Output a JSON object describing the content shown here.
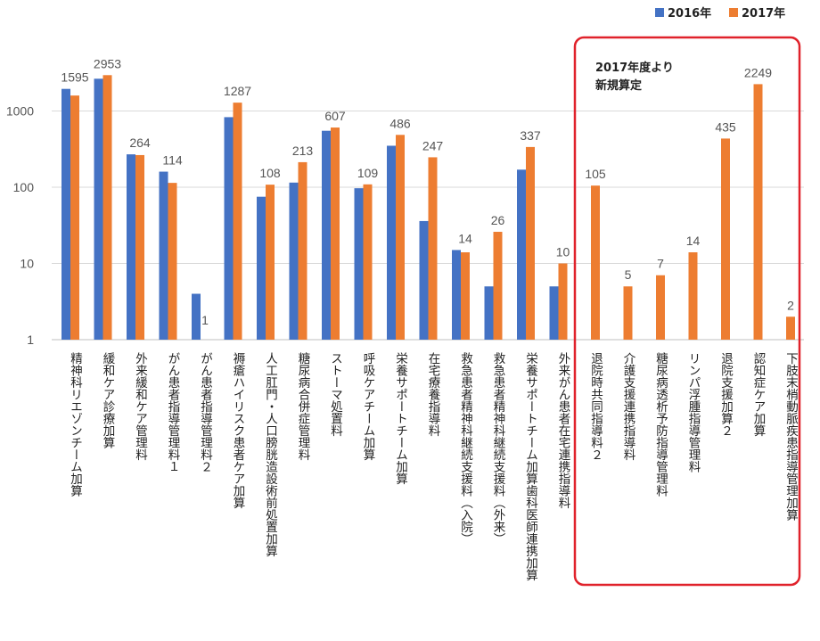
{
  "chart_data": {
    "type": "bar",
    "yscale": "log",
    "ylim": [
      1,
      3000
    ],
    "yticks": [
      1,
      10,
      100,
      1000
    ],
    "grid": true,
    "legend_placement": "top-right",
    "categories": [
      "精神科リエゾンチーム加算",
      "緩和ケア診療加算",
      "外来緩和ケア管理料",
      "がん患者指導管理料１",
      "がん患者指導管理料２",
      "褥瘡ハイリスク患者ケア加算",
      "人工肛門・人口膀胱造設術前処置加算",
      "糖尿病合併症管理料",
      "ストーマ処置料",
      "呼吸ケアチーム加算",
      "栄養サポートチーム加算",
      "在宅療養指導料",
      "救急患者精神科継続支援料（入院）",
      "救急患者精神科継続支援料（外来）",
      "栄養サポートチーム加算歯科医師連携加算",
      "外来がん患者在宅連携指導料",
      "退院時共同指導料２",
      "介護支援連携指導料",
      "糖尿病透析予防指導管理料",
      "リンパ浮腫指導管理料",
      "退院支援加算２",
      "認知症ケア加算",
      "下肢末梢動脈疾患指導管理加算"
    ],
    "series": [
      {
        "name": "2016年",
        "color": "#4472C4",
        "values": [
          1950,
          2650,
          270,
          160,
          4,
          830,
          75,
          115,
          550,
          97,
          350,
          36,
          15,
          5,
          170,
          5,
          null,
          null,
          null,
          null,
          null,
          null,
          null
        ]
      },
      {
        "name": "2017年",
        "color": "#ED7D31",
        "values": [
          1595,
          2953,
          264,
          114,
          1,
          1287,
          108,
          213,
          607,
          109,
          486,
          247,
          14,
          26,
          337,
          10,
          105,
          5,
          7,
          14,
          435,
          2249,
          2
        ]
      }
    ],
    "data_labels": [
      "1595",
      "2953",
      "264",
      "114",
      "1",
      "1287",
      "108",
      "213",
      "607",
      "109",
      "486",
      "247",
      "14",
      "26",
      "337",
      "10",
      "105",
      "5",
      "7",
      "14",
      "435",
      "2249",
      "2"
    ],
    "annotation": {
      "lines": [
        "2017年度より",
        "新規算定"
      ],
      "box_color": "#E0222B"
    }
  }
}
